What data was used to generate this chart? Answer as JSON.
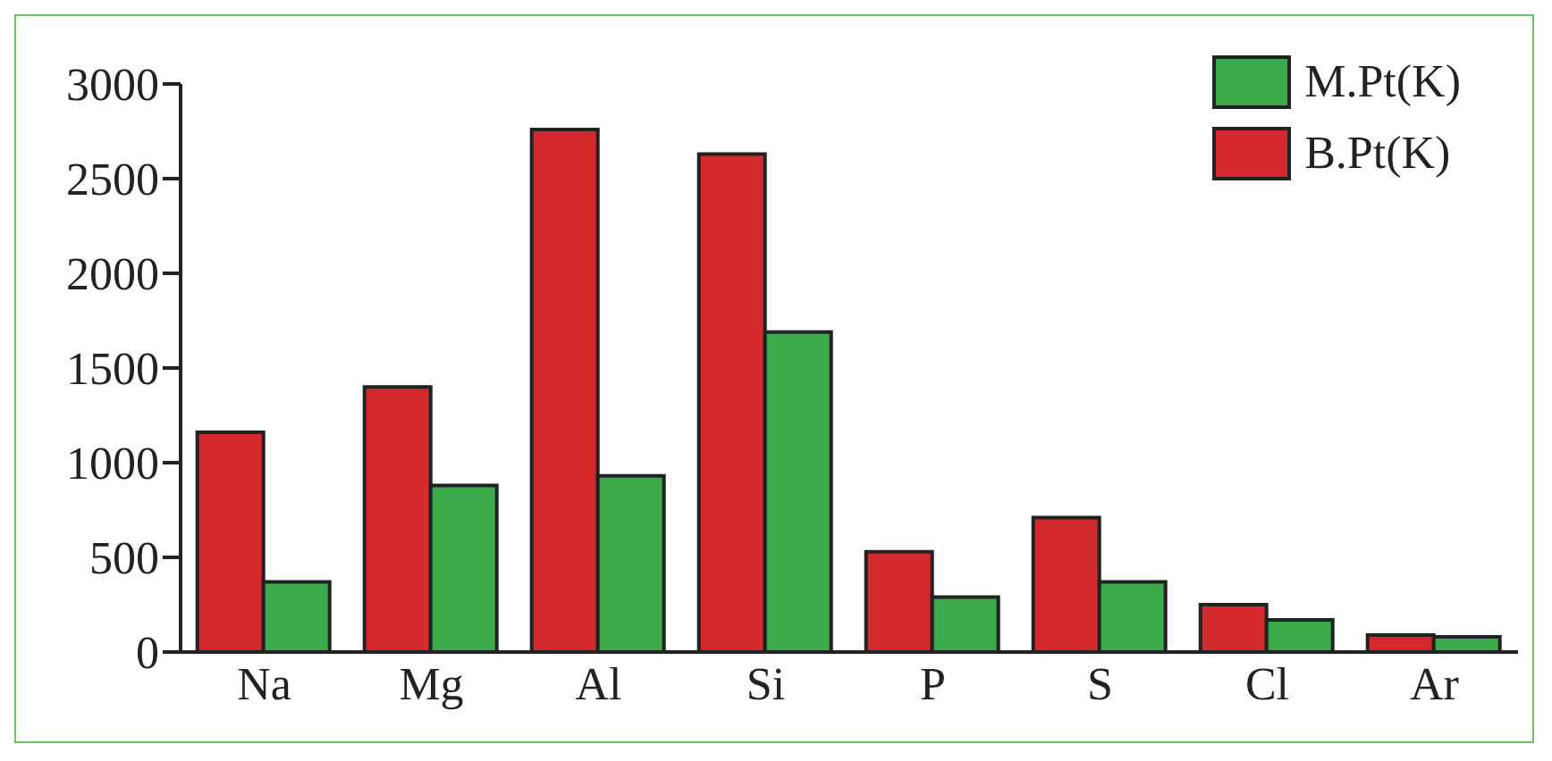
{
  "chart_data": {
    "type": "bar",
    "categories": [
      "Na",
      "Mg",
      "Al",
      "Si",
      "P",
      "S",
      "Cl",
      "Ar"
    ],
    "series": [
      {
        "name": "B.Pt(K)",
        "color": "#d42a2e",
        "values": [
          1160,
          1400,
          2760,
          2630,
          530,
          710,
          250,
          90
        ]
      },
      {
        "name": "M.Pt(K)",
        "color": "#3aaa4a",
        "values": [
          370,
          880,
          930,
          1690,
          290,
          370,
          170,
          80
        ]
      }
    ],
    "ylim": [
      0,
      3000
    ],
    "yticks": [
      0,
      500,
      1000,
      1500,
      2000,
      2500,
      3000
    ],
    "legend": "top right"
  }
}
